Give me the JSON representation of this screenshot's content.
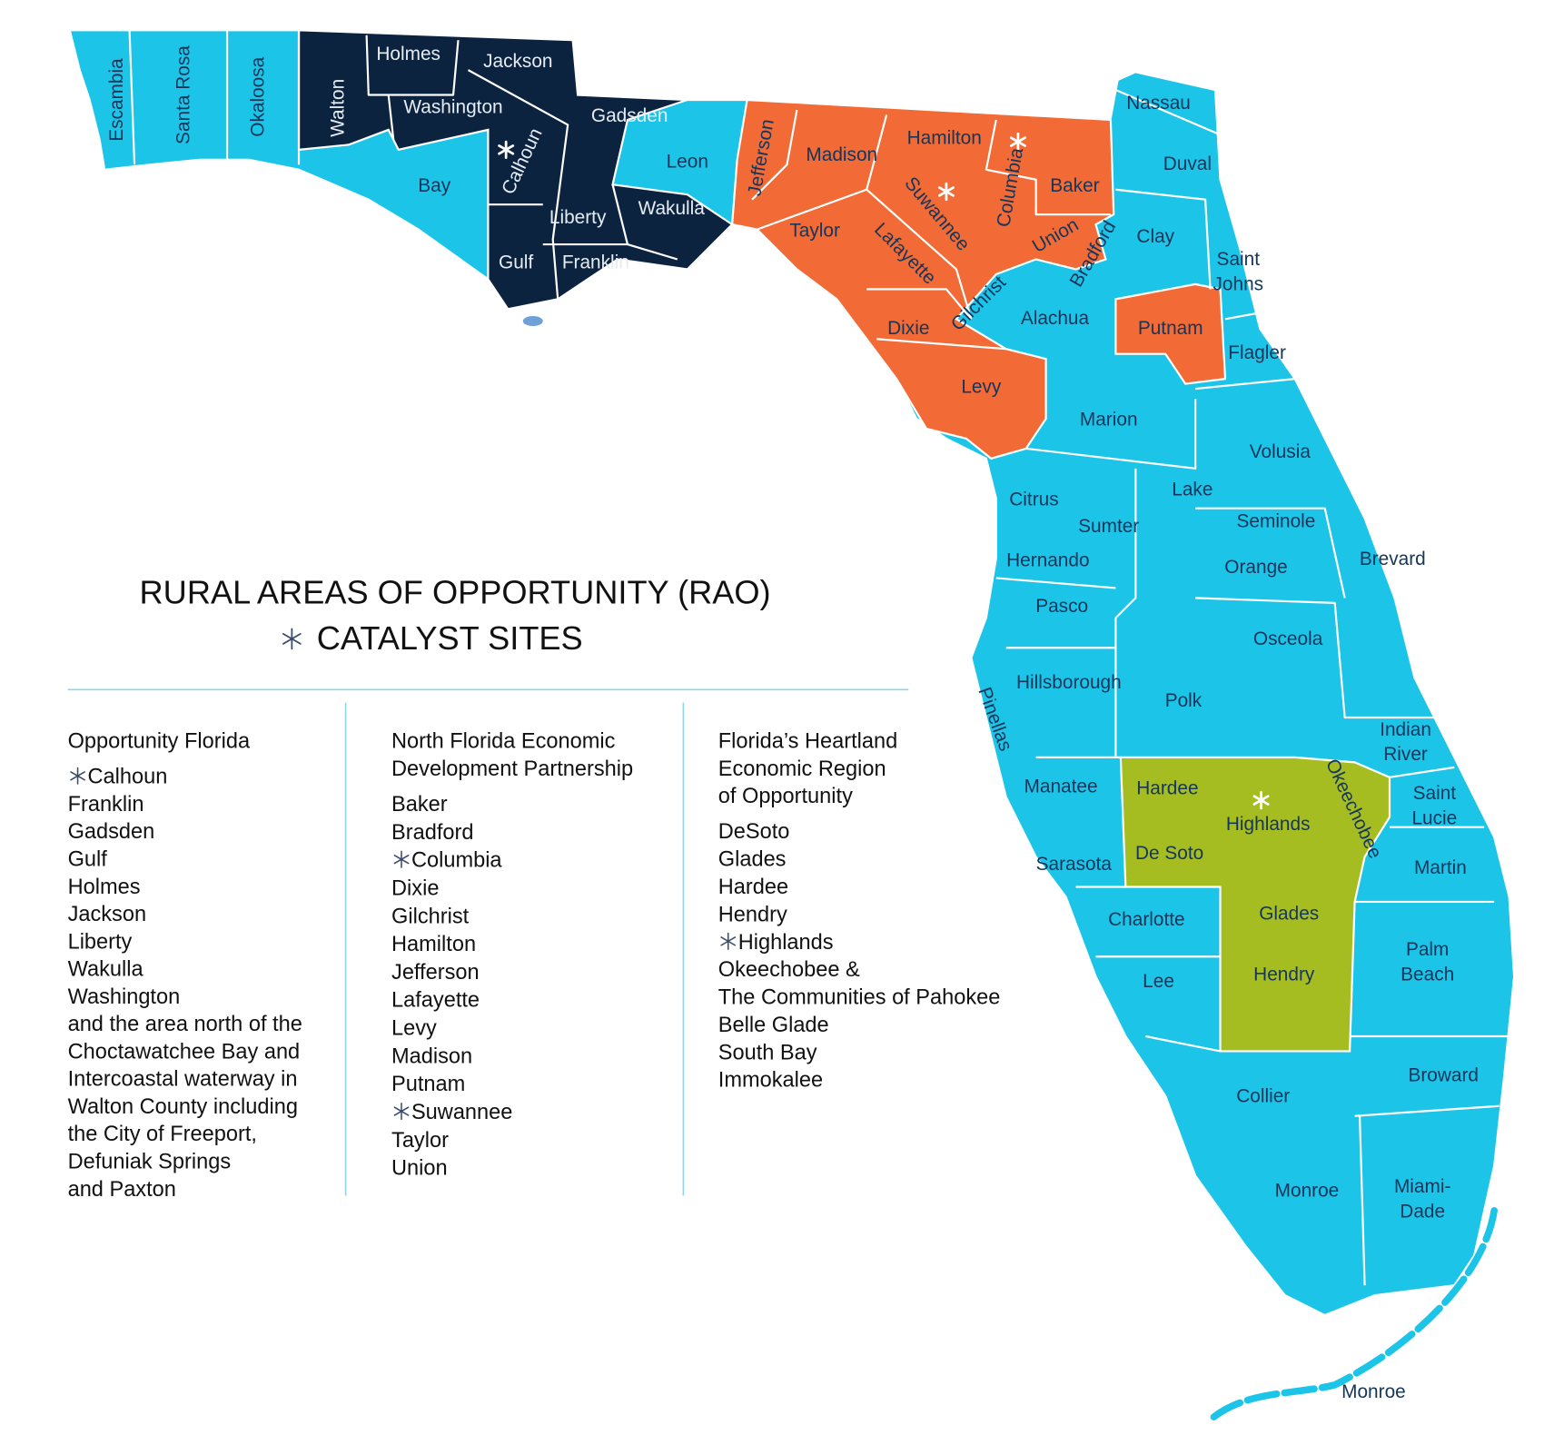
{
  "legend": {
    "title": "RURAL AREAS OF OPPORTUNITY (RAO)",
    "subtitle": "CATALYST SITES",
    "regions": [
      {
        "name": [
          "Opportunity Florida"
        ],
        "sites": [
          {
            "text": "Calhoun",
            "catalyst": true
          },
          {
            "text": "Franklin"
          },
          {
            "text": "Gadsden"
          },
          {
            "text": "Gulf"
          },
          {
            "text": "Holmes"
          },
          {
            "text": "Jackson"
          },
          {
            "text": "Liberty"
          },
          {
            "text": "Wakulla"
          },
          {
            "text": "Washington"
          },
          {
            "text": "and the area north of the"
          },
          {
            "text": "Choctawatchee Bay and"
          },
          {
            "text": "Intercoastal waterway in"
          },
          {
            "text": "Walton County including"
          },
          {
            "text": "the City of Freeport,"
          },
          {
            "text": "Defuniak Springs"
          },
          {
            "text": "and Paxton"
          }
        ]
      },
      {
        "name": [
          "North Florida Economic",
          "Development Partnership"
        ],
        "sites": [
          {
            "text": "Baker"
          },
          {
            "text": "Bradford"
          },
          {
            "text": "Columbia",
            "catalyst": true
          },
          {
            "text": "Dixie"
          },
          {
            "text": "Gilchrist"
          },
          {
            "text": "Hamilton"
          },
          {
            "text": "Jefferson"
          },
          {
            "text": "Lafayette"
          },
          {
            "text": "Levy"
          },
          {
            "text": "Madison"
          },
          {
            "text": "Putnam"
          },
          {
            "text": "Suwannee",
            "catalyst": true
          },
          {
            "text": "Taylor"
          },
          {
            "text": "Union"
          }
        ]
      },
      {
        "name": [
          "Florida’s Heartland",
          "Economic Region",
          "of Opportunity"
        ],
        "sites": [
          {
            "text": "DeSoto"
          },
          {
            "text": "Glades"
          },
          {
            "text": "Hardee"
          },
          {
            "text": "Hendry"
          },
          {
            "text": "Highlands",
            "catalyst": true
          },
          {
            "text": "Okeechobee &"
          },
          {
            "text": "The Communities of Pahokee"
          },
          {
            "text": "Belle Glade"
          },
          {
            "text": "South Bay"
          },
          {
            "text": "Immokalee"
          }
        ]
      }
    ]
  },
  "map": {
    "counties": [
      "Walton",
      "Holmes",
      "Jackson",
      "Washington",
      "Gadsden",
      "Calhoun",
      "Liberty",
      "Wakulla",
      "Gulf",
      "Franklin",
      "Escambia",
      "Santa Rosa",
      "Okaloosa",
      "Bay",
      "Leon",
      "Nassau",
      "Duval",
      "Clay",
      [
        "Saint",
        "Johns"
      ],
      "Alachua",
      "Flagler",
      "Marion",
      "Volusia",
      "Citrus",
      "Lake",
      "Sumter",
      "Seminole",
      "Hernando",
      "Orange",
      "Brevard",
      "Pasco",
      "Osceola",
      "Hillsborough",
      "Pinellas",
      "Polk",
      [
        "Indian",
        "River"
      ],
      "Manatee",
      [
        "Saint",
        "Lucie"
      ],
      "Martin",
      "Sarasota",
      "Charlotte",
      [
        "Palm",
        "Beach"
      ],
      "Lee",
      "Collier",
      "Broward",
      "Monroe",
      [
        "Miami-",
        "Dade"
      ],
      "Monroe",
      "Jefferson",
      "Madison",
      "Hamilton",
      "Columbia",
      "Baker",
      "Suwannee",
      "Taylor",
      "Lafayette",
      "Union",
      "Bradford",
      "Gilchrist",
      "Dixie",
      "Levy",
      "Putnam",
      "Hardee",
      "Highlands",
      "Okeechobee",
      "De Soto",
      "Glades",
      "Hendry"
    ]
  }
}
